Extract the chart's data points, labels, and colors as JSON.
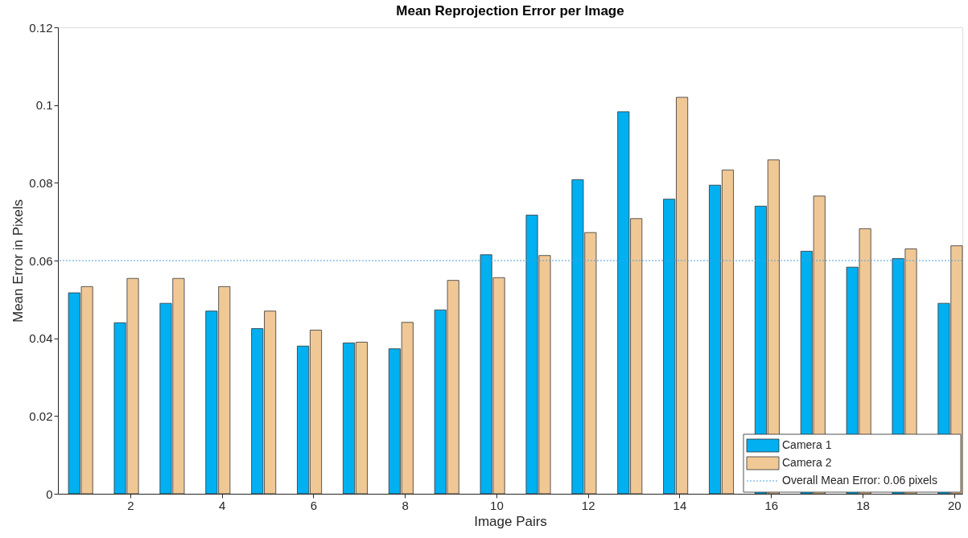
{
  "chart_data": {
    "type": "bar",
    "title": "Mean Reprojection Error per Image",
    "xlabel": "Image Pairs",
    "ylabel": "Mean Error in Pixels",
    "x": [
      1,
      2,
      3,
      4,
      5,
      6,
      7,
      8,
      9,
      10,
      11,
      12,
      13,
      14,
      15,
      16,
      17,
      18,
      19,
      20
    ],
    "series": [
      {
        "name": "Camera 1",
        "color": "#00b0f0",
        "values": [
          0.0517,
          0.044,
          0.049,
          0.047,
          0.0425,
          0.038,
          0.0388,
          0.0373,
          0.0473,
          0.0615,
          0.0717,
          0.0808,
          0.0983,
          0.0758,
          0.0794,
          0.074,
          0.0624,
          0.0583,
          0.0605,
          0.049
        ]
      },
      {
        "name": "Camera 2",
        "color": "#f0c896",
        "values": [
          0.0533,
          0.0554,
          0.0554,
          0.0533,
          0.047,
          0.0421,
          0.039,
          0.0441,
          0.0549,
          0.0556,
          0.0613,
          0.0672,
          0.0708,
          0.102,
          0.0833,
          0.0859,
          0.0766,
          0.0682,
          0.063,
          0.0638
        ]
      }
    ],
    "ref_lines": [
      {
        "axis": "y",
        "value": 0.06,
        "label": "Overall Mean Error: 0.06 pixels",
        "color": "#4a9fe0",
        "line_style": "dotted"
      }
    ],
    "xlim": [
      0.42,
      20.18
    ],
    "xticks": [
      2,
      4,
      6,
      8,
      10,
      12,
      14,
      16,
      18,
      20
    ],
    "ylim": [
      0,
      0.12
    ],
    "yticks": [
      0,
      0.02,
      0.04,
      0.06,
      0.08,
      0.1,
      0.12
    ],
    "grid": false,
    "legend": "bottom right"
  }
}
